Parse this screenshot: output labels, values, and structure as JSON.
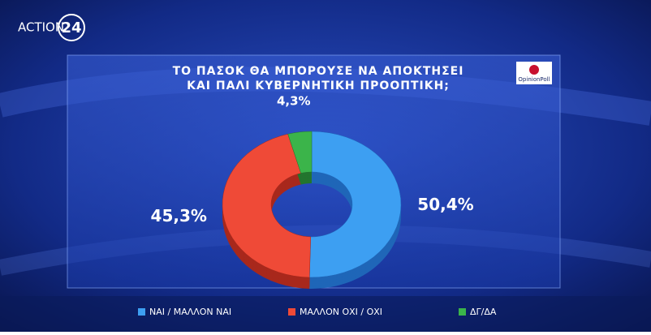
{
  "branding": {
    "channel": "ACTION",
    "channel_number": "24",
    "pollster": "OpinionPoll"
  },
  "chart_data": {
    "type": "donut",
    "title": [
      "ΤΟ ΠΑΣΟΚ ΘΑ ΜΠΟΡΟΥΣΕ ΝΑ ΑΠΟΚΤΗΣΕΙ",
      "ΚΑΙ ΠΑΛΙ ΚΥΒΕΡΝΗΤΙΚΗ ΠΡΟΟΠΤΙΚΗ;"
    ],
    "categories": [
      "ΝΑΙ  /  ΜΑΛΛΟΝ  ΝΑΙ",
      "ΜΑΛΛΟΝ  ΟΧΙ  /  ΟΧΙ",
      "ΔΓ/ΔΑ"
    ],
    "values": [
      50.4,
      45.3,
      4.3
    ],
    "value_labels": [
      "50,4%",
      "45,3%",
      "4,3%"
    ],
    "colors": [
      "#3d9ff2",
      "#ef4a37",
      "#3bb44a"
    ],
    "side_colors": [
      "#1f66b8",
      "#a8281c",
      "#23752e"
    ]
  }
}
